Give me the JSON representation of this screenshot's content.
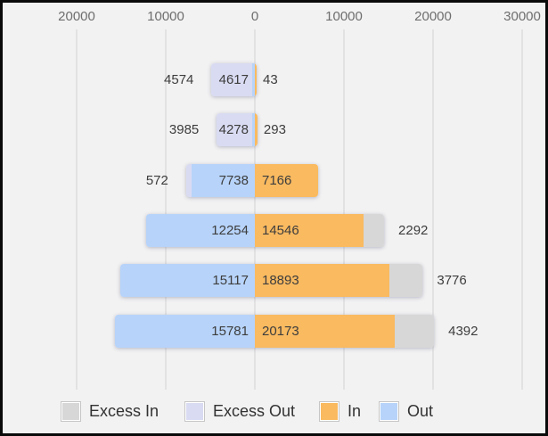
{
  "panel": {
    "background": "#f2f2f2",
    "border_color": "#0a0a0a",
    "gridline_color": "#e2e2e2"
  },
  "axis": {
    "tick_labels": [
      "20000",
      "10000",
      "0",
      "10000",
      "20000",
      "30000"
    ],
    "label_color": "#6e6e6e"
  },
  "legend": {
    "items": [
      {
        "label": "Excess In",
        "color": "#d7d7d7"
      },
      {
        "label": "Excess Out",
        "color": "#d9dbf2"
      },
      {
        "label": "In",
        "color": "#f9ba60"
      },
      {
        "label": "Out",
        "color": "#b7d3f9"
      }
    ]
  },
  "chart_data": {
    "type": "bar",
    "orientation": "horizontal-diverging",
    "title": "",
    "xlabel": "",
    "ylabel": "",
    "axis_tick_values": [
      -20000,
      -10000,
      0,
      10000,
      20000,
      30000
    ],
    "xlim": [
      -22500,
      32500
    ],
    "grid": true,
    "legend_position": "bottom",
    "series_colors": {
      "excess_in": "#d7d7d7",
      "excess_out": "#d9dbf2",
      "in": "#f9ba60",
      "out": "#b7d3f9"
    },
    "value_label_color": "#3d3d3d",
    "rows": [
      {
        "out": 4617,
        "in": 43,
        "excess_out": 4574,
        "excess_in": 0
      },
      {
        "out": 4278,
        "in": 293,
        "excess_out": 3985,
        "excess_in": 0
      },
      {
        "out": 7738,
        "in": 7166,
        "excess_out": 572,
        "excess_in": 0
      },
      {
        "out": 12254,
        "in": 14546,
        "excess_out": 0,
        "excess_in": 2292
      },
      {
        "out": 15117,
        "in": 18893,
        "excess_out": 0,
        "excess_in": 3776
      },
      {
        "out": 15781,
        "in": 20173,
        "excess_out": 0,
        "excess_in": 4392
      }
    ]
  }
}
